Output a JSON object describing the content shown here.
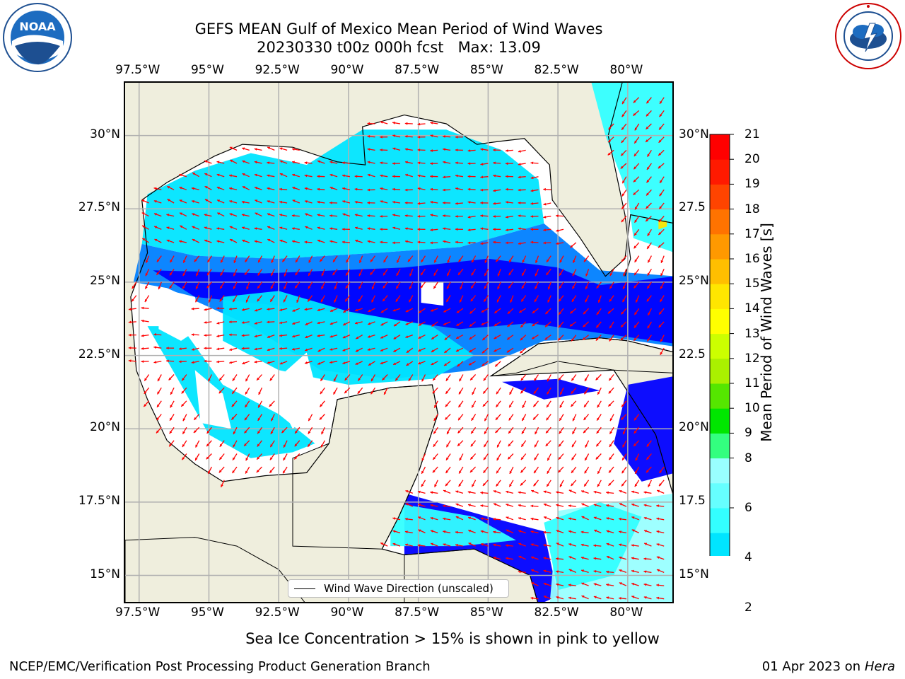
{
  "header": {
    "title_line1": "GEFS MEAN Gulf of Mexico Mean Period of Wind Waves",
    "title_line2": "20230330 t00z 000h fcst   Max: 13.09"
  },
  "logos": {
    "left": {
      "name": "noaa-logo",
      "text": "NOAA",
      "ring_text": "NATIONAL OCEANIC AND ATMOSPHERIC ADMINISTRATION · U.S. DEPARTMENT OF COMMERCE"
    },
    "right": {
      "name": "nws-logo",
      "ring_text": "NATIONAL WEATHER SERVICE"
    }
  },
  "map": {
    "lon_ticks": [
      "97.5°W",
      "95°W",
      "92.5°W",
      "90°W",
      "87.5°W",
      "85°W",
      "82.5°W",
      "80°W"
    ],
    "lat_ticks_left": [
      "30°N",
      "27.5°N",
      "25°N",
      "22.5°N",
      "20°N",
      "17.5°N",
      "15°N"
    ],
    "lat_ticks_right": [
      "30°N",
      "27.5",
      "25°N",
      "22.5",
      "20°N",
      "17.5",
      "15°N"
    ],
    "lon_range": [
      -98,
      -78.3
    ],
    "lat_range": [
      14,
      31.8
    ],
    "land_color": "#efeedd",
    "grid": true,
    "legend_label": "Wind Wave Direction (unscaled)",
    "arrow_color": "#ff0000"
  },
  "colorbar": {
    "title": "Mean Period of Wind Waves [s]",
    "labels": [
      "21",
      "20",
      "19",
      "18",
      "17",
      "16",
      "15",
      "14",
      "13",
      "12",
      "11",
      "10",
      "9",
      "8",
      "6",
      "4",
      "2"
    ],
    "colors": [
      "#0000ff",
      "#0080ff",
      "#00e5ff",
      "#33ffff",
      "#66ffff",
      "#99ffff",
      "#33ff7f",
      "#00e600",
      "#55e600",
      "#aaf000",
      "#ccff00",
      "#ffff00",
      "#ffe600",
      "#ffbf00",
      "#ff9900",
      "#ff7300",
      "#ff4400",
      "#ff1a00",
      "#ff0000"
    ],
    "extend": "min"
  },
  "footer": {
    "note": "Sea Ice Concentration > 15% is shown in pink to yellow",
    "left": "NCEP/EMC/Verification Post Processing Product Generation Branch",
    "right_prefix": "01 Apr 2023 on ",
    "right_host": "Hera"
  }
}
